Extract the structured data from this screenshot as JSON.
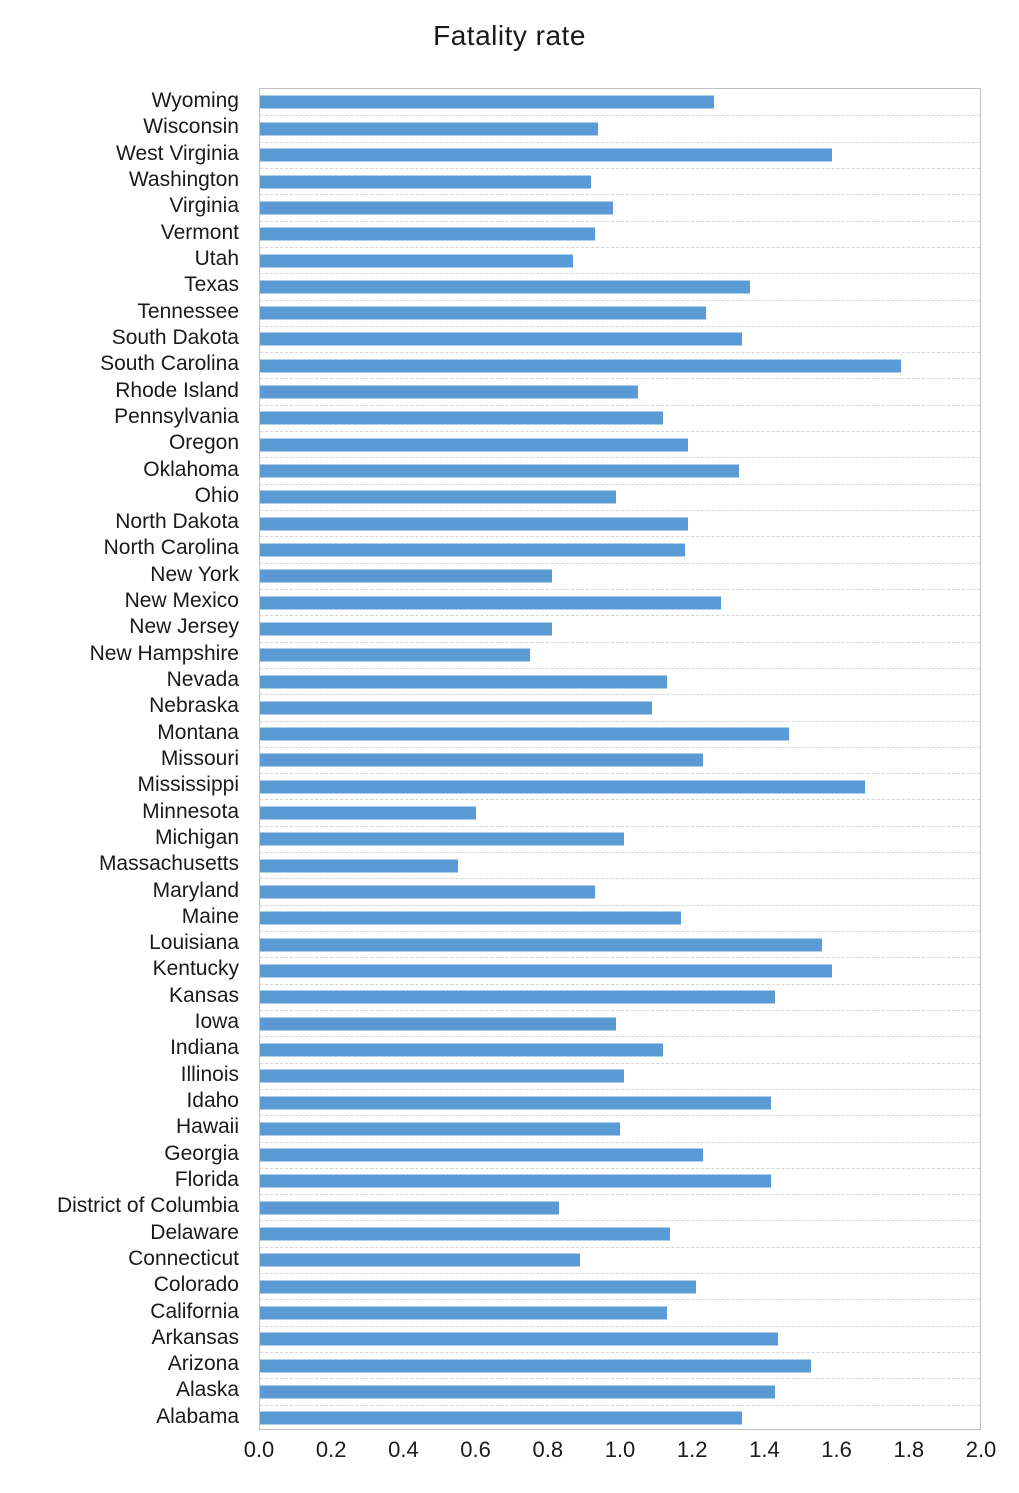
{
  "title": "Fatality rate",
  "chart_data": {
    "type": "bar",
    "orientation": "horizontal",
    "title": "Fatality rate",
    "xlabel": "",
    "ylabel": "",
    "xlim": [
      0.0,
      2.0
    ],
    "x_tick_step": 0.2,
    "x_ticks": [
      "0.0",
      "0.2",
      "0.4",
      "0.6",
      "0.8",
      "1.0",
      "1.2",
      "1.4",
      "1.6",
      "1.8",
      "2.0"
    ],
    "legend": "none",
    "grid": "dashed category separators",
    "bar_color": "#5B9BD5",
    "frame_color": "#BFBFBF",
    "gridline_color": "#D4D4D4",
    "categories_top_to_bottom": [
      "Wyoming",
      "Wisconsin",
      "West Virginia",
      "Washington",
      "Virginia",
      "Vermont",
      "Utah",
      "Texas",
      "Tennessee",
      "South Dakota",
      "South Carolina",
      "Rhode Island",
      "Pennsylvania",
      "Oregon",
      "Oklahoma",
      "Ohio",
      "North Dakota",
      "North Carolina",
      "New York",
      "New Mexico",
      "New Jersey",
      "New Hampshire",
      "Nevada",
      "Nebraska",
      "Montana",
      "Missouri",
      "Mississippi",
      "Minnesota",
      "Michigan",
      "Massachusetts",
      "Maryland",
      "Maine",
      "Louisiana",
      "Kentucky",
      "Kansas",
      "Iowa",
      "Indiana",
      "Illinois",
      "Idaho",
      "Hawaii",
      "Georgia",
      "Florida",
      "District of Columbia",
      "Delaware",
      "Connecticut",
      "Colorado",
      "California",
      "Arkansas",
      "Arizona",
      "Alaska",
      "Alabama"
    ],
    "values_top_to_bottom": [
      1.26,
      0.94,
      1.59,
      0.92,
      0.98,
      0.93,
      0.87,
      1.36,
      1.24,
      1.34,
      1.78,
      1.05,
      1.12,
      1.19,
      1.33,
      0.99,
      1.19,
      1.18,
      0.81,
      1.28,
      0.81,
      0.75,
      1.13,
      1.09,
      1.47,
      1.23,
      1.68,
      0.6,
      1.01,
      0.55,
      0.93,
      1.17,
      1.56,
      1.59,
      1.43,
      0.99,
      1.12,
      1.01,
      1.42,
      1.0,
      1.23,
      1.42,
      0.83,
      1.14,
      0.89,
      1.21,
      1.13,
      1.44,
      1.53,
      1.43,
      1.34
    ]
  }
}
